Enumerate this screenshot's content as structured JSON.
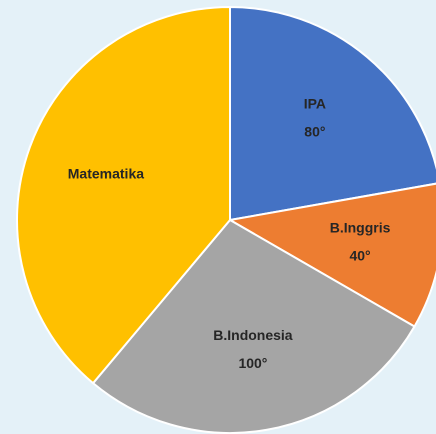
{
  "chart_data": {
    "type": "pie",
    "categories": [
      "IPA",
      "B.Inggris",
      "B.Indonesia",
      "Matematika"
    ],
    "values": [
      80,
      40,
      100,
      140
    ],
    "value_labels": [
      "80°",
      "40°",
      "100°",
      null
    ],
    "colors": [
      "#4472c4",
      "#ed7d31",
      "#a5a5a5",
      "#ffc000"
    ]
  }
}
